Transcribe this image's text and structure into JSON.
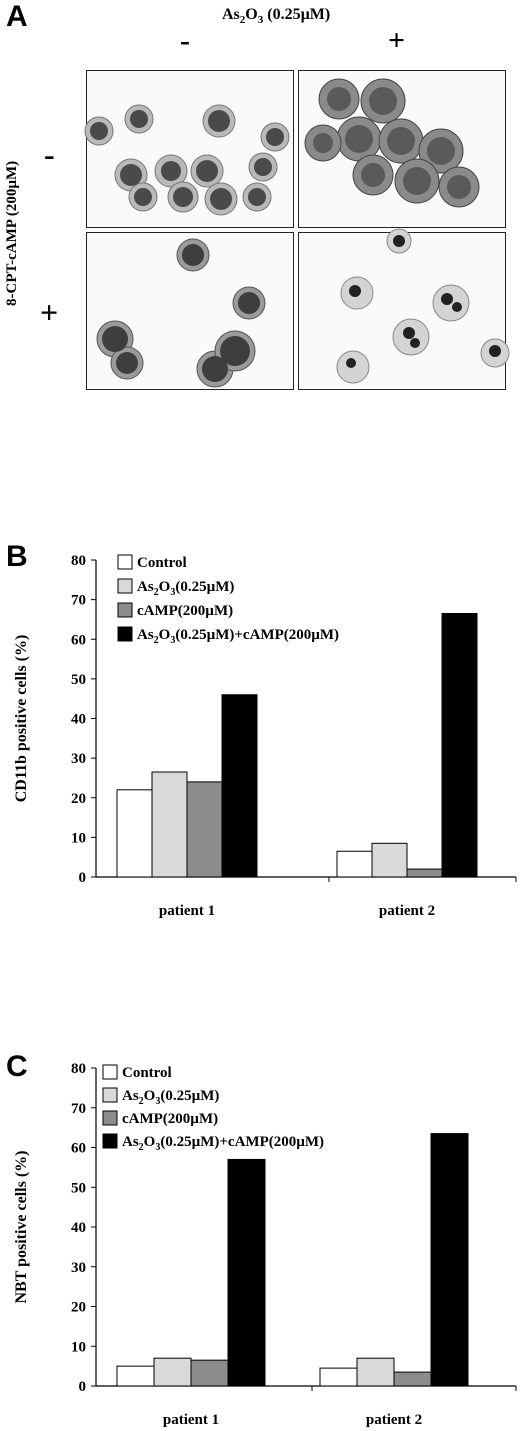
{
  "panels": {
    "a": {
      "letter": "A"
    },
    "b": {
      "letter": "B"
    },
    "c": {
      "letter": "C"
    }
  },
  "panel_a": {
    "top_header": {
      "main": "As",
      "sub1": "2",
      "mid": "O",
      "sub2": "3",
      "rest": " (0.25µM)"
    },
    "left_header": "8-CPT-cAMP (200µM)",
    "col_minus": "-",
    "col_plus": "+",
    "row_minus": "-",
    "row_plus": "+"
  },
  "legend_items": [
    {
      "parts": [
        "Control"
      ],
      "fill": "#ffffff"
    },
    {
      "parts": [
        "As",
        "2",
        "O",
        "3",
        "(0.25µM)"
      ],
      "fill": "#d9d9d9"
    },
    {
      "parts": [
        "cAMP(200µM)"
      ],
      "fill": "#8c8c8c"
    },
    {
      "parts": [
        "As",
        "2",
        "O",
        "3",
        "(0.25µM)+cAMP(200µM)"
      ],
      "fill": "#000000"
    }
  ],
  "chart_data": [
    {
      "type": "bar",
      "panel": "B",
      "ylabel": "CD11b  positive cells (%)",
      "ylim": [
        0,
        80
      ],
      "yticks": [
        0,
        10,
        20,
        30,
        40,
        50,
        60,
        70,
        80
      ],
      "categories": [
        "patient 1",
        "patient 2"
      ],
      "series": [
        {
          "name": "Control",
          "values": [
            22,
            6.5
          ]
        },
        {
          "name": "As2O3(0.25µM)",
          "values": [
            26.5,
            8.5
          ]
        },
        {
          "name": "cAMP(200µM)",
          "values": [
            24,
            2
          ]
        },
        {
          "name": "As2O3(0.25µM)+cAMP(200µM)",
          "values": [
            46,
            66.5
          ]
        }
      ],
      "grid": false,
      "legend": "top-left"
    },
    {
      "type": "bar",
      "panel": "C",
      "ylabel": "NBT  positive cells (%)",
      "ylim": [
        0,
        80
      ],
      "yticks": [
        0,
        10,
        20,
        30,
        40,
        50,
        60,
        70,
        80
      ],
      "categories": [
        "patient 1",
        "patient 2"
      ],
      "series": [
        {
          "name": "Control",
          "values": [
            5,
            4.5
          ]
        },
        {
          "name": "As2O3(0.25µM)",
          "values": [
            7,
            7
          ]
        },
        {
          "name": "cAMP(200µM)",
          "values": [
            6.5,
            3.5
          ]
        },
        {
          "name": "As2O3(0.25µM)+cAMP(200µM)",
          "values": [
            57,
            63.5
          ]
        }
      ],
      "grid": false,
      "legend": "top-left"
    }
  ]
}
